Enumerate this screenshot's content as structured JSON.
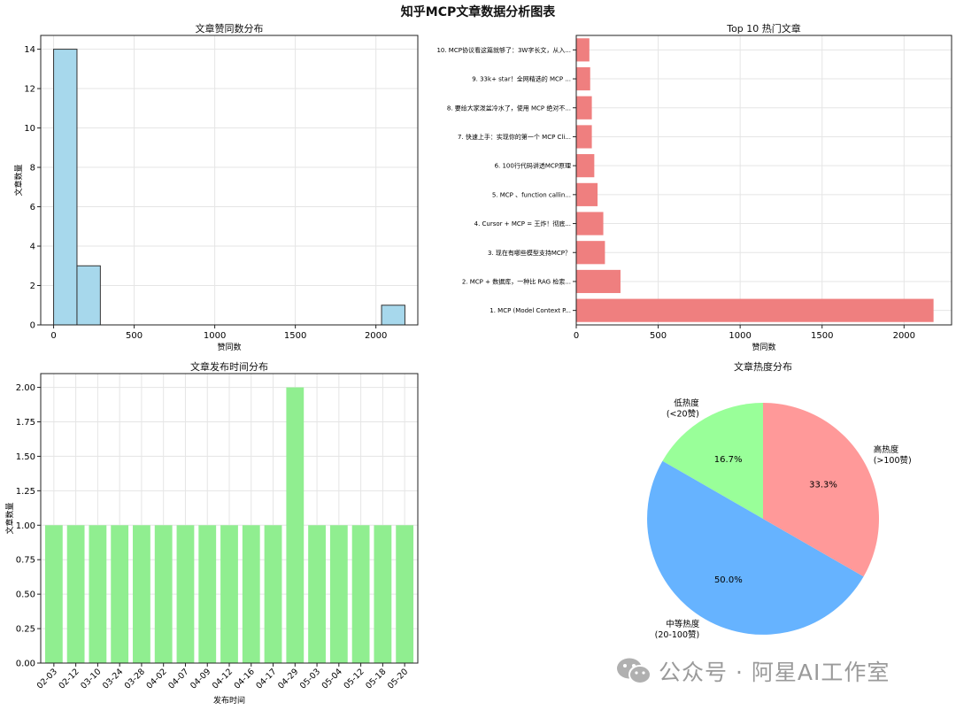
{
  "suptitle": "知乎MCP文章数据分析图表",
  "watermark": "公众号 · 阿星AI工作室",
  "colors": {
    "hist": "#a7d8ec",
    "bar": "#ef7f7f",
    "time": "#90ee90",
    "pie_high": "#ff9999",
    "pie_mid": "#66b3ff",
    "pie_low": "#99ff99"
  },
  "chart_data": [
    {
      "type": "bar",
      "subtype": "histogram",
      "title": "文章赞同数分布",
      "xlabel": "赞同数",
      "ylabel": "文章数量",
      "bins": [
        {
          "start": 0,
          "end": 145,
          "count": 14
        },
        {
          "start": 145,
          "end": 290,
          "count": 3
        },
        {
          "start": 2035,
          "end": 2180,
          "count": 1
        }
      ],
      "xlim": [
        -80,
        2260
      ],
      "ylim": [
        0,
        14.7
      ],
      "xticks": [
        0,
        500,
        1000,
        1500,
        2000
      ],
      "yticks": [
        0,
        2,
        4,
        6,
        8,
        10,
        12,
        14
      ],
      "grid": true
    },
    {
      "type": "bar",
      "orientation": "horizontal",
      "title": "Top 10 热门文章",
      "xlabel": "赞同数",
      "categories": [
        "1. MCP (Model Context P...",
        "2. MCP + 数据库，一种比 RAG 检索...",
        "3. 现在有哪些模型支持MCP？",
        "4. Cursor + MCP = 王炸！彻底...",
        "5. MCP 、function callin...",
        "6. 100行代码讲透MCP原理",
        "7. 快速上手：实现你的第一个 MCP Cli...",
        "8. 要给大家泼盆冷水了，使用 MCP 绝对不...",
        "9. 33k+ star！全网精选的 MCP ...",
        "10. MCP协议看这篇就够了：3W字长文，从入..."
      ],
      "values": [
        2180,
        270,
        175,
        165,
        130,
        110,
        95,
        95,
        85,
        80
      ],
      "xlim": [
        0,
        2290
      ],
      "xticks": [
        0,
        500,
        1000,
        1500,
        2000
      ],
      "grid": true
    },
    {
      "type": "bar",
      "title": "文章发布时间分布",
      "xlabel": "发布时间",
      "ylabel": "文章数量",
      "categories": [
        "02-03",
        "02-12",
        "03-10",
        "03-24",
        "03-28",
        "04-02",
        "04-07",
        "04-09",
        "04-12",
        "04-16",
        "04-17",
        "04-29",
        "05-03",
        "05-04",
        "05-12",
        "05-18",
        "05-20"
      ],
      "values": [
        1,
        1,
        1,
        1,
        1,
        1,
        1,
        1,
        1,
        1,
        1,
        2,
        1,
        1,
        1,
        1,
        1
      ],
      "ylim": [
        0,
        2.1
      ],
      "yticks": [
        "0.00",
        "0.25",
        "0.50",
        "0.75",
        "1.00",
        "1.25",
        "1.50",
        "1.75",
        "2.00"
      ],
      "grid": true
    },
    {
      "type": "pie",
      "title": "文章热度分布",
      "slices": [
        {
          "label": "低热度\n(<20赞)",
          "value": 16.7,
          "pct": "16.7%",
          "color": "#99ff99"
        },
        {
          "label": "中等热度\n(20-100赞)",
          "value": 50.0,
          "pct": "50.0%",
          "color": "#66b3ff"
        },
        {
          "label": "高热度\n(>100赞)",
          "value": 33.3,
          "pct": "33.3%",
          "color": "#ff9999"
        }
      ]
    }
  ]
}
